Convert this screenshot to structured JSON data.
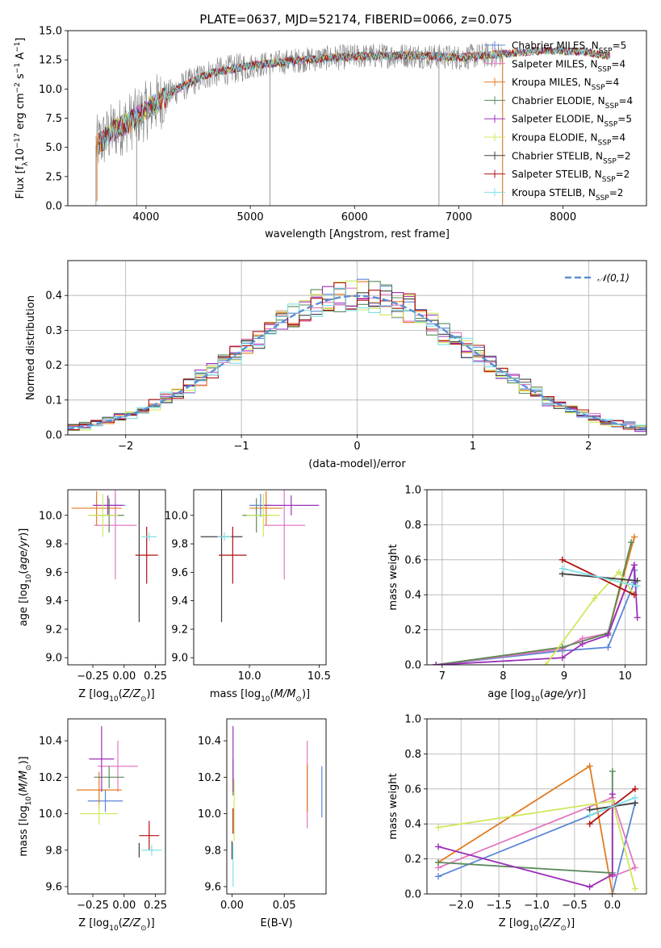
{
  "title": "PLATE=0637, MJD=52174, FIBERID=0066, z=0.075",
  "colors": {
    "Chabrier MILES": "#5b86d6",
    "Salpeter MILES": "#e377c2",
    "Kroupa MILES": "#e07b1f",
    "Chabrier ELODIE": "#5a8a5a",
    "Salpeter ELODIE": "#9c2fb8",
    "Kroupa ELODIE": "#cfe85a",
    "Chabrier STELIB": "#404040",
    "Salpeter STELIB": "#b01010",
    "Kroupa STELIB": "#7fe0e8",
    "data": "#808080",
    "normal": "#5b8fd6"
  },
  "legend": [
    {
      "base": "Chabrier MILES, N",
      "n": "5"
    },
    {
      "base": "Salpeter MILES, N",
      "n": "4"
    },
    {
      "base": "Kroupa MILES, N",
      "n": "4"
    },
    {
      "base": "Chabrier ELODIE, N",
      "n": "4"
    },
    {
      "base": "Salpeter ELODIE, N",
      "n": "5"
    },
    {
      "base": "Kroupa ELODIE, N",
      "n": "4"
    },
    {
      "base": "Chabrier STELIB, N",
      "n": "2"
    },
    {
      "base": "Salpeter STELIB, N",
      "n": "2"
    },
    {
      "base": "Kroupa STELIB, N",
      "n": "2"
    }
  ],
  "legend_sub": "SSP",
  "hist_legend": "𝒩(0,1)",
  "chart_data": [
    {
      "type": "line",
      "name": "spectrum",
      "xlabel": "wavelength [Angstrom, rest frame]",
      "ylabel": "Flux [f_λ 10^-17 erg cm^-2 s^-1 A^-1]",
      "xlim": [
        3250,
        8800
      ],
      "ylim": [
        0,
        15
      ],
      "xticks": [
        4000,
        5000,
        6000,
        7000,
        8000
      ],
      "yticks": [
        0.0,
        2.5,
        5.0,
        7.5,
        10.0,
        12.5,
        15.0
      ],
      "continuum": [
        [
          3500,
          5.0
        ],
        [
          3700,
          6.5
        ],
        [
          3900,
          7.5
        ],
        [
          4100,
          8.8
        ],
        [
          4300,
          10.0
        ],
        [
          4600,
          11.3
        ],
        [
          5000,
          12.0
        ],
        [
          5500,
          12.5
        ],
        [
          6000,
          12.8
        ],
        [
          6500,
          12.9
        ],
        [
          7000,
          12.7
        ],
        [
          7400,
          13.0
        ],
        [
          7800,
          13.3
        ],
        [
          8200,
          13.2
        ],
        [
          8450,
          12.8
        ]
      ]
    },
    {
      "type": "line",
      "name": "residual-histogram",
      "xlabel": "(data-model)/error",
      "ylabel": "Normed distribution",
      "xlim": [
        -2.5,
        2.5
      ],
      "ylim": [
        0,
        0.5
      ],
      "xticks": [
        -2,
        -1,
        0,
        1,
        2
      ],
      "yticks": [
        0.0,
        0.1,
        0.2,
        0.3,
        0.4
      ],
      "grid": true,
      "legend_position": "top-right"
    },
    {
      "type": "scatter",
      "name": "age-vs-Z",
      "xlabel": "Z [log10(Z/Z⊙)]",
      "ylabel": "age [log10(age/yr)]",
      "xlim": [
        -0.45,
        0.33
      ],
      "ylim": [
        8.95,
        10.18
      ],
      "xticks": [
        -0.25,
        0.0,
        0.25
      ],
      "yticks": [
        9.0,
        9.2,
        9.4,
        9.6,
        9.8,
        10.0
      ],
      "points": [
        {
          "model": "Chabrier MILES",
          "x": -0.07,
          "xerr": 0.08,
          "y": 10.07,
          "yerr": 0.08
        },
        {
          "model": "Salpeter MILES",
          "x": -0.07,
          "xerr": 0.17,
          "y": 9.93,
          "yerr": 0.38
        },
        {
          "model": "Kroupa MILES",
          "x": -0.22,
          "xerr": 0.2,
          "y": 10.05,
          "yerr": 0.12
        },
        {
          "model": "Chabrier ELODIE",
          "x": -0.12,
          "xerr": 0.12,
          "y": 10.0,
          "yerr": 0.12
        },
        {
          "model": "Salpeter ELODIE",
          "x": -0.13,
          "xerr": 0.12,
          "y": 10.07,
          "yerr": 0.07
        },
        {
          "model": "Kroupa ELODIE",
          "x": -0.17,
          "xerr": 0.12,
          "y": 10.0,
          "yerr": 0.15
        },
        {
          "model": "Chabrier STELIB",
          "x": 0.12,
          "xerr": 0.0,
          "y": 9.85,
          "yerr": 0.6
        },
        {
          "model": "Salpeter STELIB",
          "x": 0.18,
          "xerr": 0.09,
          "y": 9.72,
          "yerr": 0.2
        },
        {
          "model": "Kroupa STELIB",
          "x": 0.2,
          "xerr": 0.06,
          "y": 9.85,
          "yerr": 0.03
        }
      ]
    },
    {
      "type": "scatter",
      "name": "age-vs-mass",
      "xlabel": "mass [log10(M/M⊙)]",
      "ylabel": "",
      "xlim": [
        9.6,
        10.55
      ],
      "ylim": [
        8.95,
        10.18
      ],
      "xticks": [
        10.0,
        10.5
      ],
      "yticks": [
        9.0,
        9.2,
        9.4,
        9.6,
        9.8,
        10.0
      ],
      "points": [
        {
          "model": "Chabrier MILES",
          "x": 10.08,
          "xerr": 0.08,
          "y": 10.07,
          "yerr": 0.08
        },
        {
          "model": "Salpeter MILES",
          "x": 10.25,
          "xerr": 0.15,
          "y": 9.93,
          "yerr": 0.38
        },
        {
          "model": "Kroupa MILES",
          "x": 10.12,
          "xerr": 0.12,
          "y": 10.05,
          "yerr": 0.12
        },
        {
          "model": "Chabrier ELODIE",
          "x": 10.05,
          "xerr": 0.1,
          "y": 10.0,
          "yerr": 0.12
        },
        {
          "model": "Salpeter ELODIE",
          "x": 10.3,
          "xerr": 0.2,
          "y": 10.07,
          "yerr": 0.07
        },
        {
          "model": "Kroupa ELODIE",
          "x": 10.1,
          "xerr": 0.12,
          "y": 10.0,
          "yerr": 0.15
        },
        {
          "model": "Chabrier STELIB",
          "x": 9.8,
          "xerr": 0.15,
          "y": 9.85,
          "yerr": 0.6
        },
        {
          "model": "Salpeter STELIB",
          "x": 9.88,
          "xerr": 0.1,
          "y": 9.72,
          "yerr": 0.2
        },
        {
          "model": "Kroupa STELIB",
          "x": 9.82,
          "xerr": 0.05,
          "y": 9.85,
          "yerr": 0.03
        }
      ]
    },
    {
      "type": "line",
      "name": "mass-weight-vs-age",
      "xlabel": "age [log10(age/yr)]",
      "ylabel": "mass weight",
      "xlim": [
        6.75,
        10.35
      ],
      "ylim": [
        0,
        1
      ],
      "xticks": [
        7,
        8,
        9,
        10
      ],
      "yticks": [
        0.0,
        0.2,
        0.4,
        0.6,
        0.8,
        1.0
      ],
      "grid": true,
      "series": [
        {
          "model": "Chabrier MILES",
          "points": [
            [
              6.9,
              0.0
            ],
            [
              8.97,
              0.08
            ],
            [
              9.72,
              0.1
            ],
            [
              10.15,
              0.47
            ],
            [
              10.15,
              0.54
            ]
          ]
        },
        {
          "model": "Salpeter MILES",
          "points": [
            [
              6.9,
              0.0
            ],
            [
              8.97,
              0.09
            ],
            [
              9.3,
              0.15
            ],
            [
              9.72,
              0.18
            ],
            [
              10.15,
              0.57
            ]
          ]
        },
        {
          "model": "Kroupa MILES",
          "points": [
            [
              6.9,
              0.0
            ],
            [
              8.97,
              0.1
            ],
            [
              9.72,
              0.18
            ],
            [
              10.15,
              0.73
            ]
          ]
        },
        {
          "model": "Chabrier ELODIE",
          "points": [
            [
              6.9,
              0.0
            ],
            [
              8.97,
              0.1
            ],
            [
              9.72,
              0.18
            ],
            [
              10.1,
              0.7
            ]
          ]
        },
        {
          "model": "Salpeter ELODIE",
          "points": [
            [
              6.9,
              0.0
            ],
            [
              8.97,
              0.04
            ],
            [
              9.3,
              0.12
            ],
            [
              9.72,
              0.17
            ],
            [
              10.15,
              0.57
            ],
            [
              10.2,
              0.27
            ]
          ]
        },
        {
          "model": "Kroupa ELODIE",
          "points": [
            [
              8.7,
              0.0
            ],
            [
              9.5,
              0.38
            ],
            [
              9.9,
              0.53
            ],
            [
              10.15,
              0.4
            ]
          ]
        },
        {
          "model": "Chabrier STELIB",
          "points": [
            [
              8.97,
              0.52
            ],
            [
              10.2,
              0.48
            ]
          ]
        },
        {
          "model": "Salpeter STELIB",
          "points": [
            [
              8.97,
              0.6
            ],
            [
              10.15,
              0.4
            ]
          ]
        },
        {
          "model": "Kroupa STELIB",
          "points": [
            [
              8.97,
              0.55
            ],
            [
              10.2,
              0.45
            ]
          ]
        }
      ]
    },
    {
      "type": "scatter",
      "name": "mass-vs-Z",
      "xlabel": "Z [log10(Z/Z⊙)]",
      "ylabel": "mass [log10(M/M⊙)]",
      "xlim": [
        -0.45,
        0.33
      ],
      "ylim": [
        9.56,
        10.52
      ],
      "xticks": [
        -0.25,
        0.0,
        0.25
      ],
      "yticks": [
        9.6,
        9.8,
        10.0,
        10.2,
        10.4
      ],
      "points": [
        {
          "model": "Chabrier MILES",
          "x": -0.15,
          "xerr": 0.14,
          "y": 10.07,
          "yerr": 0.06
        },
        {
          "model": "Salpeter MILES",
          "x": -0.05,
          "xerr": 0.16,
          "y": 10.26,
          "yerr": 0.14
        },
        {
          "model": "Kroupa MILES",
          "x": -0.2,
          "xerr": 0.18,
          "y": 10.13,
          "yerr": 0.1
        },
        {
          "model": "Chabrier ELODIE",
          "x": -0.12,
          "xerr": 0.12,
          "y": 10.2,
          "yerr": 0.06
        },
        {
          "model": "Salpeter ELODIE",
          "x": -0.18,
          "xerr": 0.1,
          "y": 10.3,
          "yerr": 0.18
        },
        {
          "model": "Kroupa ELODIE",
          "x": -0.2,
          "xerr": 0.15,
          "y": 10.0,
          "yerr": 0.06
        },
        {
          "model": "Chabrier STELIB",
          "x": 0.12,
          "xerr": 0.0,
          "y": 9.8,
          "yerr": 0.04
        },
        {
          "model": "Salpeter STELIB",
          "x": 0.2,
          "xerr": 0.08,
          "y": 9.88,
          "yerr": 0.08
        },
        {
          "model": "Kroupa STELIB",
          "x": 0.22,
          "xerr": 0.08,
          "y": 9.8,
          "yerr": 0.03
        }
      ]
    },
    {
      "type": "scatter",
      "name": "mass-vs-EBV",
      "xlabel": "E(B-V)",
      "ylabel": "",
      "xlim": [
        -0.005,
        0.09
      ],
      "ylim": [
        9.56,
        10.52
      ],
      "xticks": [
        0.0,
        0.05
      ],
      "yticks": [
        9.6,
        9.8,
        10.0,
        10.2,
        10.4
      ],
      "points": [
        {
          "model": "Chabrier MILES",
          "x": 0.086,
          "yerr": 0.14,
          "y": 10.12
        },
        {
          "model": "Salpeter MILES",
          "x": 0.072,
          "yerr": 0.24,
          "y": 10.16
        },
        {
          "model": "Kroupa MILES",
          "x": 0.072,
          "yerr": 0.13,
          "y": 10.14
        },
        {
          "model": "Chabrier ELODIE",
          "x": 0.001,
          "yerr": 0.1,
          "y": 10.2
        },
        {
          "model": "Salpeter ELODIE",
          "x": 0.001,
          "yerr": 0.18,
          "y": 10.3
        },
        {
          "model": "Kroupa ELODIE",
          "x": 0.002,
          "yerr": 0.17,
          "y": 10.02
        },
        {
          "model": "Chabrier STELIB",
          "x": 0.0,
          "yerr": 0.05,
          "y": 9.8
        },
        {
          "model": "Salpeter STELIB",
          "x": 0.001,
          "yerr": 0.07,
          "y": 9.96
        },
        {
          "model": "Kroupa STELIB",
          "x": 0.001,
          "yerr": 0.12,
          "y": 9.72
        }
      ]
    },
    {
      "type": "line",
      "name": "mass-weight-vs-Z",
      "xlabel": "Z [log10(Z/Z⊙)]",
      "ylabel": "mass weight",
      "xlim": [
        -2.45,
        0.45
      ],
      "ylim": [
        0,
        1
      ],
      "xticks": [
        -2.0,
        -1.5,
        -1.0,
        -0.5,
        0.0
      ],
      "yticks": [
        0.0,
        0.2,
        0.4,
        0.6,
        0.8,
        1.0
      ],
      "grid": true,
      "series": [
        {
          "model": "Chabrier MILES",
          "points": [
            [
              -2.3,
              0.1
            ],
            [
              0.0,
              0.5
            ],
            [
              0.3,
              0.52
            ],
            [
              0.0,
              0.0
            ]
          ]
        },
        {
          "model": "Salpeter MILES",
          "points": [
            [
              -2.3,
              0.15
            ],
            [
              0.0,
              0.55
            ],
            [
              0.3,
              0.15
            ],
            [
              0.0,
              0.1
            ]
          ]
        },
        {
          "model": "Kroupa MILES",
          "points": [
            [
              -2.3,
              0.18
            ],
            [
              -0.3,
              0.73
            ],
            [
              0.0,
              0.0
            ]
          ]
        },
        {
          "model": "Chabrier ELODIE",
          "points": [
            [
              -2.3,
              0.18
            ],
            [
              0.0,
              0.12
            ],
            [
              0.0,
              0.7
            ]
          ]
        },
        {
          "model": "Salpeter ELODIE",
          "points": [
            [
              -2.3,
              0.27
            ],
            [
              -0.3,
              0.04
            ],
            [
              0.0,
              0.11
            ],
            [
              0.0,
              0.57
            ]
          ]
        },
        {
          "model": "Kroupa ELODIE",
          "points": [
            [
              -2.3,
              0.38
            ],
            [
              0.0,
              0.53
            ],
            [
              0.3,
              0.03
            ]
          ]
        },
        {
          "model": "Chabrier STELIB",
          "points": [
            [
              -0.3,
              0.48
            ],
            [
              0.3,
              0.52
            ]
          ]
        },
        {
          "model": "Salpeter STELIB",
          "points": [
            [
              -0.3,
              0.4
            ],
            [
              0.3,
              0.6
            ]
          ]
        },
        {
          "model": "Kroupa STELIB",
          "points": [
            [
              -0.3,
              0.45
            ],
            [
              0.3,
              0.55
            ]
          ]
        }
      ]
    }
  ]
}
